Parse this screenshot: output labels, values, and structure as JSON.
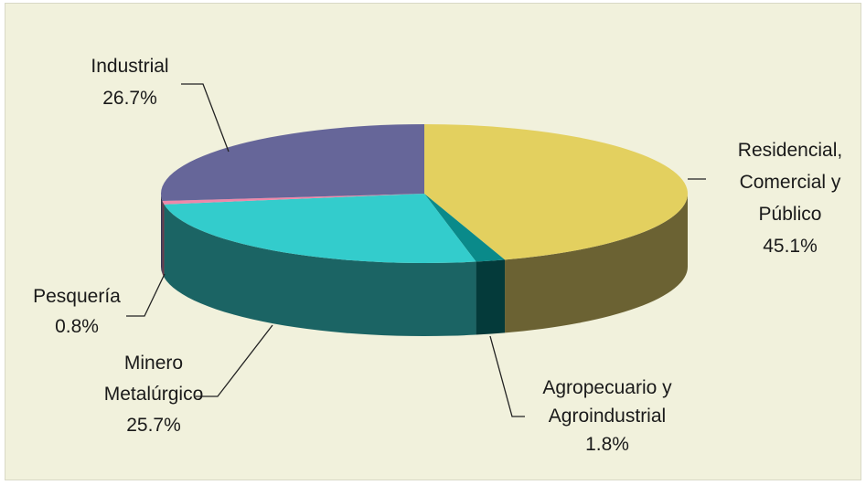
{
  "chart_data": {
    "type": "pie",
    "title": "",
    "slices": [
      {
        "label_lines": [
          "Residencial,",
          "Comercial y",
          "Público"
        ],
        "percent_label": "45.1%",
        "value": 45.1,
        "color": "#e3d05f",
        "side_color": "#6b6233"
      },
      {
        "label_lines": [
          "Agropecuario y",
          "Agroindustrial"
        ],
        "percent_label": "1.8%",
        "value": 1.8,
        "color": "#0a8a8a",
        "side_color": "#043a3a"
      },
      {
        "label_lines": [
          "Minero",
          "Metalúrgico"
        ],
        "percent_label": "25.7%",
        "value": 25.7,
        "color": "#33cccc",
        "side_color": "#1b6464"
      },
      {
        "label_lines": [
          "Pesquería"
        ],
        "percent_label": "0.8%",
        "value": 0.8,
        "color": "#ee88aa",
        "side_color": "#6a3b4b"
      },
      {
        "label_lines": [
          "Industrial"
        ],
        "percent_label": "26.7%",
        "value": 26.7,
        "color": "#666699",
        "side_color": "#353552"
      }
    ]
  }
}
